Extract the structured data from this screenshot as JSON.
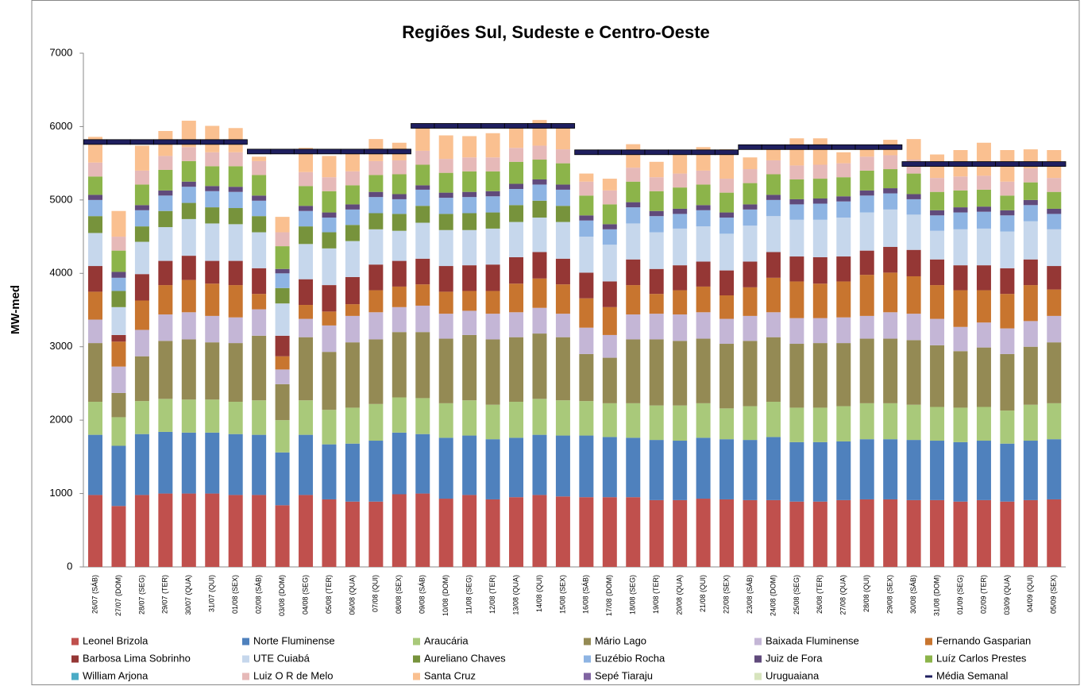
{
  "chart_data": {
    "type": "stacked_bar",
    "title": "Regiões Sul, Sudeste e Centro-Oeste",
    "y_label": "MW-med",
    "ylim": [
      0,
      7000
    ],
    "yticks": [
      0,
      1000,
      2000,
      3000,
      4000,
      5000,
      6000,
      7000
    ],
    "grid": false,
    "categories": [
      "26/07 (SÁB)",
      "27/07 (DOM)",
      "28/07 (SEG)",
      "29/07 (TER)",
      "30/07 (QUA)",
      "31/07 (QUI)",
      "01/08 (SEX)",
      "02/08 (SÁB)",
      "03/08 (DOM)",
      "04/08 (SEG)",
      "05/08 (TER)",
      "06/08 (QUA)",
      "07/08 (QUI)",
      "08/08 (SEX)",
      "09/08 (SÁB)",
      "10/08 (DOM)",
      "11/08 (SEG)",
      "12/08 (TER)",
      "13/08 (QUA)",
      "14/08 (QUI)",
      "15/08 (SEX)",
      "16/08 (SÁB)",
      "17/08 (DOM)",
      "18/08 (SEG)",
      "19/08 (TER)",
      "20/08 (QUA)",
      "21/08 (QUI)",
      "22/08 (SEX)",
      "23/08 (SÁB)",
      "24/08 (DOM)",
      "25/08 (SEG)",
      "26/08 (TER)",
      "27/08 (QUA)",
      "28/08 (QUI)",
      "29/08 (SEX)",
      "30/08 (SÁB)",
      "31/08 (DOM)",
      "01/09 (SEG)",
      "02/09 (TER)",
      "03/09 (QUA)",
      "04/09 (QUI)",
      "05/09 (SEX)"
    ],
    "series": [
      {
        "name": "Leonel Brizola",
        "color": "#c0504d",
        "values": [
          980,
          830,
          980,
          1000,
          1000,
          1000,
          980,
          980,
          840,
          980,
          920,
          890,
          890,
          990,
          1000,
          930,
          980,
          920,
          950,
          980,
          960,
          950,
          950,
          950,
          910,
          910,
          930,
          920,
          910,
          910,
          890,
          890,
          910,
          920,
          920,
          910,
          910,
          890,
          910,
          890,
          910,
          920
        ]
      },
      {
        "name": "Norte Fluminense",
        "color": "#4f81bd",
        "values": [
          820,
          820,
          830,
          840,
          830,
          830,
          830,
          820,
          720,
          820,
          750,
          790,
          830,
          840,
          810,
          830,
          810,
          820,
          810,
          820,
          830,
          840,
          820,
          810,
          820,
          810,
          830,
          820,
          820,
          860,
          810,
          810,
          800,
          820,
          820,
          820,
          810,
          810,
          810,
          790,
          810,
          820
        ]
      },
      {
        "name": "Araucária",
        "color": "#a9c97a",
        "values": [
          450,
          390,
          450,
          450,
          450,
          450,
          440,
          470,
          440,
          470,
          470,
          490,
          500,
          480,
          490,
          470,
          480,
          470,
          490,
          490,
          480,
          470,
          460,
          470,
          470,
          480,
          470,
          420,
          460,
          480,
          470,
          470,
          480,
          490,
          490,
          480,
          460,
          470,
          460,
          450,
          490,
          490
        ]
      },
      {
        "name": "Mário Lago",
        "color": "#948a54",
        "values": [
          800,
          330,
          610,
          790,
          820,
          780,
          800,
          880,
          490,
          860,
          790,
          890,
          880,
          890,
          900,
          880,
          890,
          890,
          880,
          890,
          860,
          640,
          620,
          870,
          900,
          880,
          880,
          880,
          890,
          880,
          870,
          880,
          860,
          880,
          880,
          880,
          840,
          770,
          810,
          770,
          790,
          830
        ]
      },
      {
        "name": "Baixada Fluminense",
        "color": "#c4b6d6",
        "values": [
          320,
          360,
          360,
          360,
          370,
          360,
          350,
          360,
          200,
          250,
          360,
          360,
          370,
          340,
          360,
          340,
          330,
          350,
          340,
          350,
          320,
          360,
          310,
          340,
          350,
          360,
          360,
          340,
          340,
          340,
          350,
          340,
          350,
          310,
          360,
          360,
          360,
          330,
          340,
          350,
          350,
          360
        ]
      },
      {
        "name": "Fernando Gasparian",
        "color": "#c8752f",
        "values": [
          380,
          340,
          400,
          400,
          440,
          440,
          440,
          210,
          180,
          190,
          190,
          160,
          300,
          280,
          290,
          300,
          270,
          310,
          390,
          400,
          400,
          400,
          380,
          400,
          270,
          330,
          350,
          320,
          390,
          470,
          500,
          470,
          490,
          560,
          540,
          510,
          460,
          500,
          440,
          470,
          490,
          360
        ]
      },
      {
        "name": "Barbosa Lima Sobrinho",
        "color": "#953735",
        "values": [
          350,
          90,
          360,
          330,
          330,
          310,
          330,
          350,
          280,
          350,
          360,
          370,
          350,
          350,
          350,
          350,
          350,
          360,
          360,
          360,
          350,
          350,
          350,
          350,
          340,
          340,
          340,
          340,
          350,
          350,
          340,
          360,
          340,
          330,
          350,
          360,
          350,
          340,
          340,
          350,
          350,
          320
        ]
      },
      {
        "name": "UTE Cuiabá",
        "color": "#c6d7ec",
        "values": [
          450,
          380,
          440,
          460,
          500,
          510,
          500,
          490,
          440,
          480,
          500,
          490,
          480,
          410,
          490,
          490,
          480,
          490,
          480,
          470,
          500,
          490,
          500,
          490,
          500,
          500,
          480,
          500,
          490,
          490,
          500,
          510,
          530,
          520,
          510,
          480,
          390,
          490,
          500,
          500,
          520,
          500
        ]
      },
      {
        "name": "Aureliano Chaves",
        "color": "#77933c",
        "values": [
          230,
          220,
          210,
          220,
          220,
          220,
          220,
          220,
          210,
          240,
          220,
          220,
          220,
          230,
          230,
          220,
          230,
          220,
          230,
          230,
          220,
          0,
          0,
          0,
          0,
          0,
          0,
          0,
          0,
          0,
          0,
          0,
          0,
          0,
          0,
          0,
          0,
          0,
          0,
          0,
          0,
          0
        ]
      },
      {
        "name": "Euzébio Rocha",
        "color": "#8eb4e3",
        "values": [
          220,
          180,
          220,
          210,
          220,
          220,
          220,
          210,
          200,
          210,
          200,
          210,
          220,
          200,
          220,
          220,
          220,
          220,
          220,
          220,
          220,
          220,
          210,
          220,
          220,
          200,
          220,
          220,
          220,
          220,
          210,
          220,
          220,
          230,
          220,
          210,
          210,
          230,
          230,
          220,
          220,
          210
        ]
      },
      {
        "name": "Juiz de Fora",
        "color": "#604a7b",
        "values": [
          70,
          80,
          70,
          70,
          70,
          70,
          70,
          70,
          60,
          70,
          70,
          70,
          70,
          70,
          60,
          70,
          70,
          70,
          70,
          70,
          70,
          70,
          70,
          70,
          70,
          70,
          70,
          70,
          70,
          70,
          70,
          70,
          70,
          70,
          70,
          70,
          70,
          70,
          70,
          70,
          70,
          70
        ]
      },
      {
        "name": "Luíz Carlos Prestes",
        "color": "#8cb44a",
        "values": [
          250,
          290,
          280,
          280,
          280,
          270,
          280,
          280,
          310,
          270,
          290,
          260,
          230,
          270,
          280,
          270,
          280,
          270,
          300,
          270,
          290,
          270,
          270,
          280,
          270,
          290,
          280,
          270,
          290,
          280,
          270,
          270,
          260,
          270,
          260,
          280,
          250,
          230,
          230,
          200,
          240,
          230
        ]
      },
      {
        "name": "William Arjona",
        "color": "#4bacc6",
        "values": [
          0,
          0,
          0,
          0,
          0,
          0,
          0,
          0,
          0,
          0,
          0,
          0,
          0,
          0,
          0,
          0,
          0,
          0,
          0,
          0,
          0,
          0,
          0,
          0,
          0,
          0,
          0,
          0,
          0,
          0,
          0,
          0,
          0,
          0,
          0,
          0,
          0,
          0,
          0,
          0,
          0,
          0
        ]
      },
      {
        "name": "Luiz O R de Melo",
        "color": "#e6b9b8",
        "values": [
          190,
          190,
          190,
          190,
          190,
          190,
          190,
          190,
          190,
          190,
          190,
          190,
          190,
          190,
          190,
          190,
          190,
          190,
          190,
          190,
          190,
          190,
          190,
          190,
          190,
          190,
          190,
          190,
          190,
          190,
          190,
          190,
          190,
          190,
          190,
          190,
          190,
          190,
          190,
          190,
          190,
          190
        ]
      },
      {
        "name": "Santa Cruz",
        "color": "#fac090",
        "values": [
          350,
          350,
          340,
          340,
          360,
          360,
          330,
          60,
          210,
          330,
          290,
          280,
          300,
          240,
          310,
          320,
          290,
          330,
          290,
          350,
          300,
          110,
          160,
          320,
          210,
          310,
          320,
          400,
          160,
          170,
          370,
          360,
          150,
          140,
          210,
          280,
          320,
          360,
          450,
          430,
          260,
          380
        ]
      },
      {
        "name": "Sepé Tiaraju",
        "color": "#8064a2",
        "values": [
          0,
          0,
          0,
          0,
          0,
          0,
          0,
          0,
          0,
          0,
          0,
          0,
          0,
          0,
          0,
          0,
          0,
          0,
          0,
          0,
          0,
          0,
          0,
          0,
          0,
          0,
          0,
          0,
          0,
          0,
          0,
          0,
          0,
          0,
          0,
          0,
          0,
          0,
          0,
          0,
          0,
          0
        ]
      },
      {
        "name": "Uruguaiana",
        "color": "#d7e4bd",
        "values": [
          0,
          0,
          0,
          0,
          0,
          0,
          0,
          0,
          0,
          0,
          0,
          0,
          0,
          0,
          0,
          0,
          0,
          0,
          0,
          0,
          0,
          0,
          0,
          0,
          0,
          0,
          0,
          0,
          0,
          0,
          0,
          0,
          0,
          0,
          0,
          0,
          0,
          0,
          0,
          0,
          0,
          0
        ]
      },
      {
        "name": "Média Semanal",
        "color": "#1f1f5f",
        "kind": "line",
        "values": [
          5790,
          5790,
          5790,
          5790,
          5790,
          5790,
          5790,
          5660,
          5660,
          5660,
          5660,
          5660,
          5660,
          5660,
          6010,
          6010,
          6010,
          6010,
          6010,
          6010,
          6010,
          5650,
          5650,
          5650,
          5650,
          5650,
          5650,
          5650,
          5720,
          5720,
          5720,
          5720,
          5720,
          5720,
          5720,
          5490,
          5490,
          5490,
          5490,
          5490,
          5490,
          5490
        ]
      }
    ]
  }
}
